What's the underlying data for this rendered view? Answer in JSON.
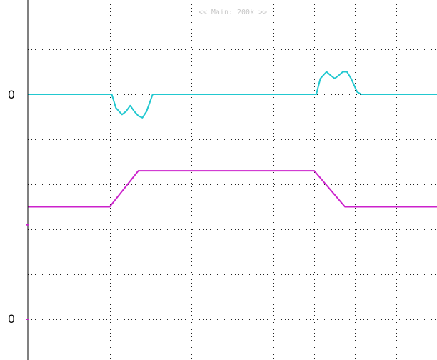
{
  "header": {
    "timebase_label": "<< Main: 200k >>"
  },
  "markers": {
    "ch1_zero_label": "0",
    "ch2_zero_label": "0"
  },
  "colors": {
    "background": "#ffffff",
    "grid": "#222222",
    "frame": "#000000",
    "ch1": "#22c8d0",
    "ch2": "#cc22cc"
  },
  "chart_data": {
    "type": "line",
    "title": "",
    "xlabel": "",
    "ylabel": "",
    "grid": true,
    "x_divisions": 10,
    "y_divisions": 8,
    "xlim": [
      0,
      10
    ],
    "ylim": [
      -4,
      4
    ],
    "series": [
      {
        "id": "ch1",
        "color": "#22c8d0",
        "zero_level_div": 2.0,
        "x": [
          0.0,
          2.05,
          2.15,
          2.3,
          2.4,
          2.5,
          2.6,
          2.7,
          2.8,
          2.9,
          3.05,
          3.15,
          3.25,
          5.0,
          7.05,
          7.15,
          7.3,
          7.4,
          7.5,
          7.6,
          7.7,
          7.8,
          7.9,
          8.05,
          8.15,
          10.0
        ],
        "y": [
          2.0,
          2.0,
          1.7,
          1.55,
          1.62,
          1.75,
          1.62,
          1.52,
          1.48,
          1.62,
          2.0,
          2.0,
          2.0,
          2.0,
          2.0,
          2.35,
          2.5,
          2.42,
          2.35,
          2.42,
          2.5,
          2.5,
          2.35,
          2.05,
          2.0,
          2.0
        ]
      },
      {
        "id": "ch2",
        "color": "#cc22cc",
        "zero_level_div": -3.0,
        "x": [
          0.0,
          2.0,
          2.7,
          7.0,
          7.75,
          10.0
        ],
        "y": [
          -0.5,
          -0.5,
          0.3,
          0.3,
          -0.5,
          -0.5
        ]
      }
    ]
  }
}
